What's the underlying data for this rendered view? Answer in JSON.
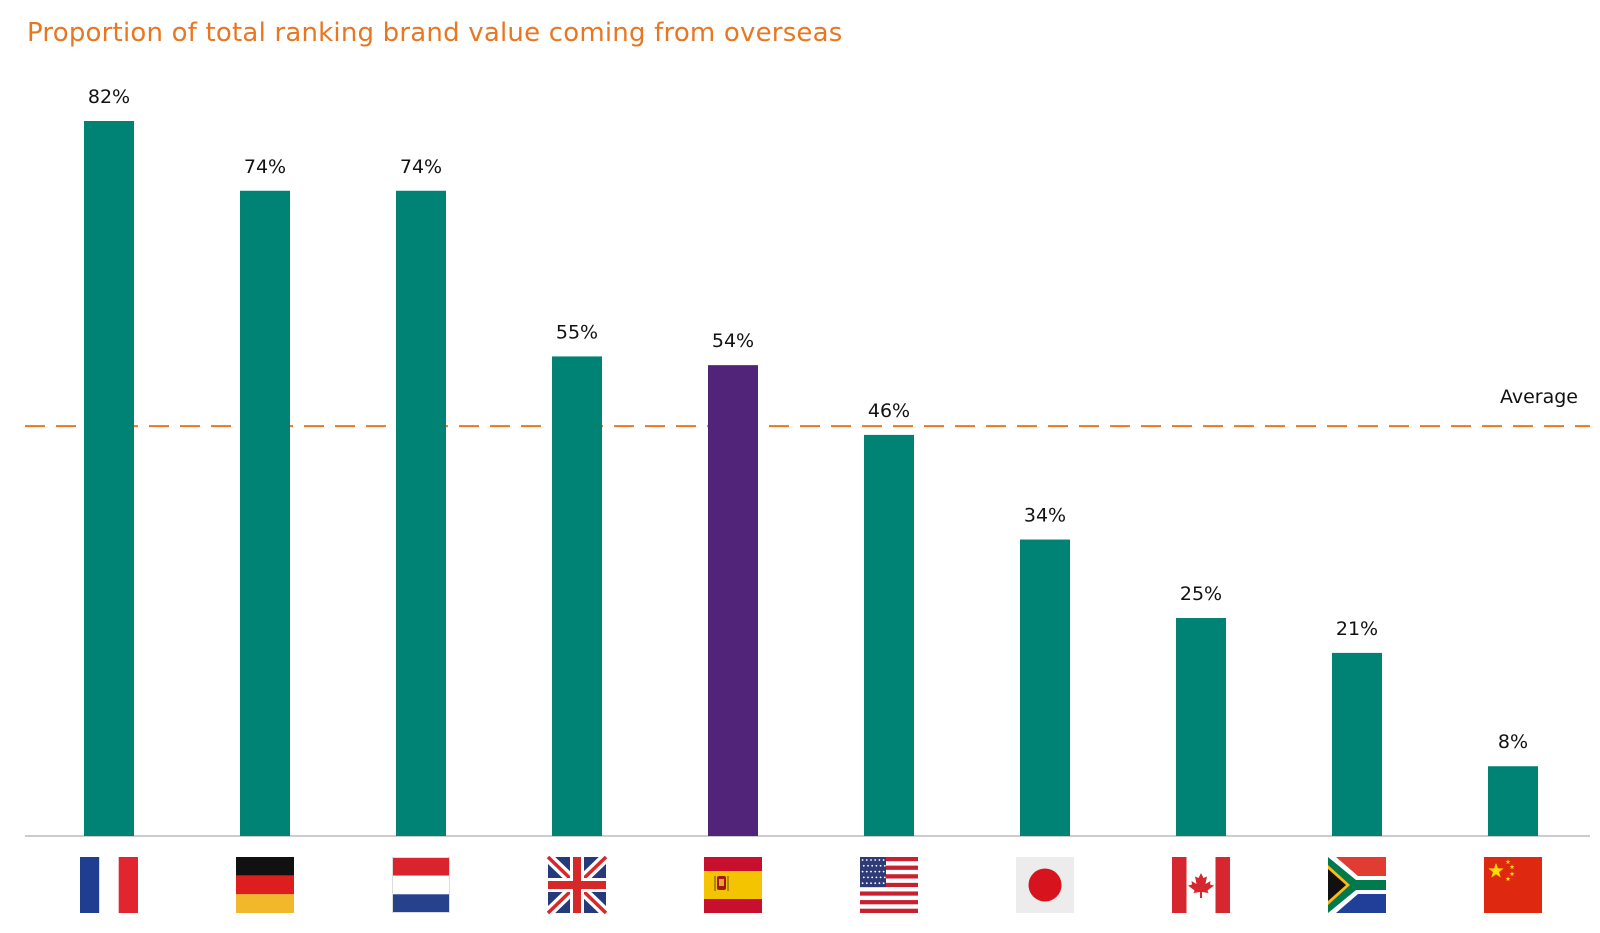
{
  "chart_data": {
    "type": "bar",
    "title": "Proportion of total ranking brand value coming from overseas",
    "categories": [
      "France",
      "Germany",
      "Netherlands",
      "United Kingdom",
      "Spain",
      "United States",
      "Japan",
      "Canada",
      "South Africa",
      "China"
    ],
    "values": [
      82,
      74,
      74,
      55,
      54,
      46,
      34,
      25,
      21,
      8
    ],
    "value_labels": [
      "82%",
      "74%",
      "74%",
      "55%",
      "54%",
      "46%",
      "34%",
      "25%",
      "21%",
      "8%"
    ],
    "highlight_index": 4,
    "average": 47,
    "average_label": "Average",
    "ylim": [
      0,
      82
    ],
    "xlabel": "",
    "ylabel": "",
    "grid": false,
    "colors": {
      "bar": "#008274",
      "highlight": "#51247a",
      "average_line": "#e87722",
      "title": "#e87722",
      "axis": "#bbbbbb"
    },
    "flags": [
      "france-flag-icon",
      "germany-flag-icon",
      "netherlands-flag-icon",
      "uk-flag-icon",
      "spain-flag-icon",
      "usa-flag-icon",
      "japan-flag-icon",
      "canada-flag-icon",
      "south-africa-flag-icon",
      "china-flag-icon"
    ]
  }
}
